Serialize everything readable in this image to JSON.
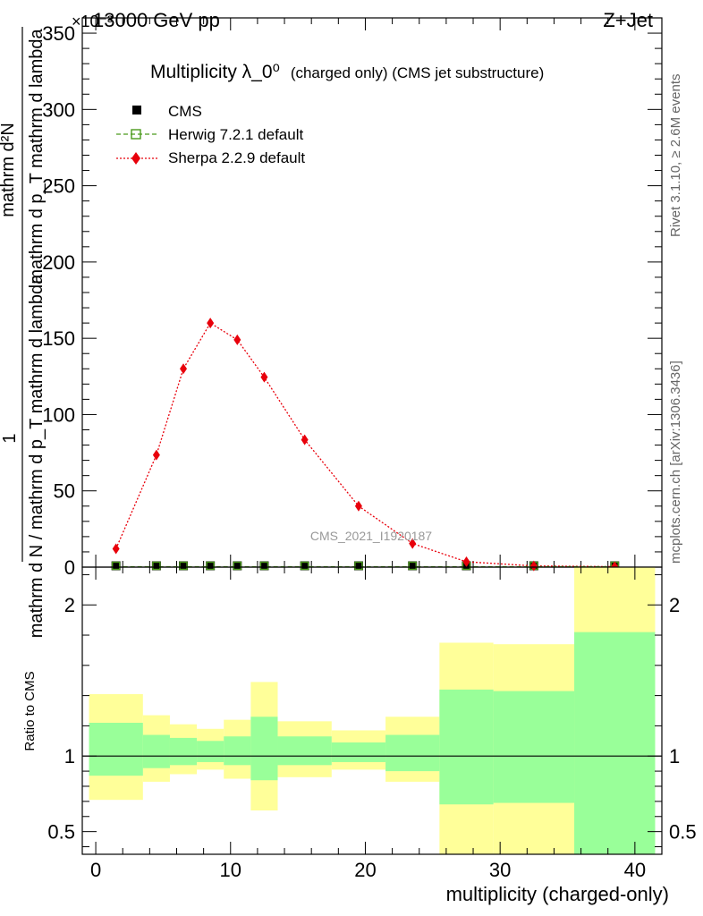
{
  "header": {
    "left": "13000 GeV pp",
    "right": "Z+Jet",
    "exponent": "×10⁻³"
  },
  "side_labels": {
    "rivet": "Rivet 3.1.10, ≥ 2.6M events",
    "mcplots": "mcplots.cern.ch [arXiv:1306.3436]"
  },
  "watermark": "CMS_2021_I1920187",
  "chart_data": [
    {
      "type": "line",
      "title_main": "Multiplicity λ_0⁰",
      "title_sub": "(charged only) (CMS jet substructure)",
      "ylabel_numerator": "1",
      "ylabel_denominator": "mathrm d N / mathrm d p_T mathrm d lambda",
      "ylabel_sub_numerator": "mathrm d²N",
      "ylabel_sub_denominator": "mathrm d p_T mathrm d lambda",
      "xlim": [
        -1,
        42
      ],
      "ylim": [
        0,
        360
      ],
      "yticks": [
        0,
        50,
        100,
        150,
        200,
        250,
        300,
        350
      ],
      "legend": [
        "CMS",
        "Herwig 7.2.1 default",
        "Sherpa 2.2.9 default"
      ],
      "series": [
        {
          "name": "CMS",
          "x": [
            1.5,
            4.5,
            6.5,
            8.5,
            10.5,
            12.5,
            15.5,
            19.5,
            23.5,
            27.5,
            32.5,
            38.5
          ],
          "values": [
            0.3,
            0.3,
            0.3,
            0.3,
            0.3,
            0.3,
            0.3,
            0.3,
            0.3,
            0.3,
            0.3,
            0.3
          ],
          "color": "#000000"
        },
        {
          "name": "Herwig 7.2.1 default",
          "x": [
            1.5,
            4.5,
            6.5,
            8.5,
            10.5,
            12.5,
            15.5,
            19.5,
            23.5,
            27.5,
            32.5,
            38.5
          ],
          "values": [
            0.3,
            0.3,
            0.3,
            0.3,
            0.3,
            0.3,
            0.3,
            0.3,
            0.3,
            0.3,
            0.3,
            0.3
          ],
          "color": "#4a9a1c"
        },
        {
          "name": "Sherpa 2.2.9 default",
          "x": [
            1.5,
            4.5,
            6.5,
            8.5,
            10.5,
            12.5,
            15.5,
            19.5,
            23.5,
            27.5,
            32.5,
            38.5
          ],
          "values": [
            12,
            73.5,
            130,
            160,
            149,
            124.5,
            83.5,
            40,
            15.5,
            3.5,
            0.8,
            0.3
          ],
          "color": "#e8000b"
        }
      ]
    },
    {
      "type": "area",
      "ylabel": "Ratio to CMS",
      "xlabel": "multiplicity (charged-only)",
      "xlim": [
        -1,
        42
      ],
      "ylim": [
        0.35,
        2.25
      ],
      "yticks": [
        0.5,
        1,
        2
      ],
      "xticks": [
        0,
        10,
        20,
        30,
        40
      ],
      "bands": [
        {
          "x0": -0.5,
          "x1": 3.5,
          "green": [
            0.87,
            1.22
          ],
          "yellow": [
            0.71,
            1.41
          ]
        },
        {
          "x0": 3.5,
          "x1": 5.5,
          "green": [
            0.92,
            1.14
          ],
          "yellow": [
            0.83,
            1.27
          ]
        },
        {
          "x0": 5.5,
          "x1": 7.5,
          "green": [
            0.94,
            1.12
          ],
          "yellow": [
            0.88,
            1.21
          ]
        },
        {
          "x0": 7.5,
          "x1": 9.5,
          "green": [
            0.96,
            1.1
          ],
          "yellow": [
            0.91,
            1.18
          ]
        },
        {
          "x0": 9.5,
          "x1": 11.5,
          "green": [
            0.94,
            1.13
          ],
          "yellow": [
            0.85,
            1.24
          ]
        },
        {
          "x0": 11.5,
          "x1": 13.5,
          "green": [
            0.84,
            1.26
          ],
          "yellow": [
            0.64,
            1.49
          ]
        },
        {
          "x0": 13.5,
          "x1": 17.5,
          "green": [
            0.94,
            1.13
          ],
          "yellow": [
            0.86,
            1.23
          ]
        },
        {
          "x0": 17.5,
          "x1": 21.5,
          "green": [
            0.96,
            1.09
          ],
          "yellow": [
            0.91,
            1.17
          ]
        },
        {
          "x0": 21.5,
          "x1": 25.5,
          "green": [
            0.9,
            1.14
          ],
          "yellow": [
            0.83,
            1.26
          ]
        },
        {
          "x0": 25.5,
          "x1": 29.5,
          "green": [
            0.68,
            1.44
          ],
          "yellow": [
            0.35,
            1.75
          ]
        },
        {
          "x0": 29.5,
          "x1": 35.5,
          "green": [
            0.69,
            1.43
          ],
          "yellow": [
            0.35,
            1.74
          ]
        },
        {
          "x0": 35.5,
          "x1": 41.5,
          "green": [
            0.35,
            1.82
          ],
          "yellow": [
            0.35,
            2.25
          ]
        }
      ],
      "reference": 1
    }
  ]
}
